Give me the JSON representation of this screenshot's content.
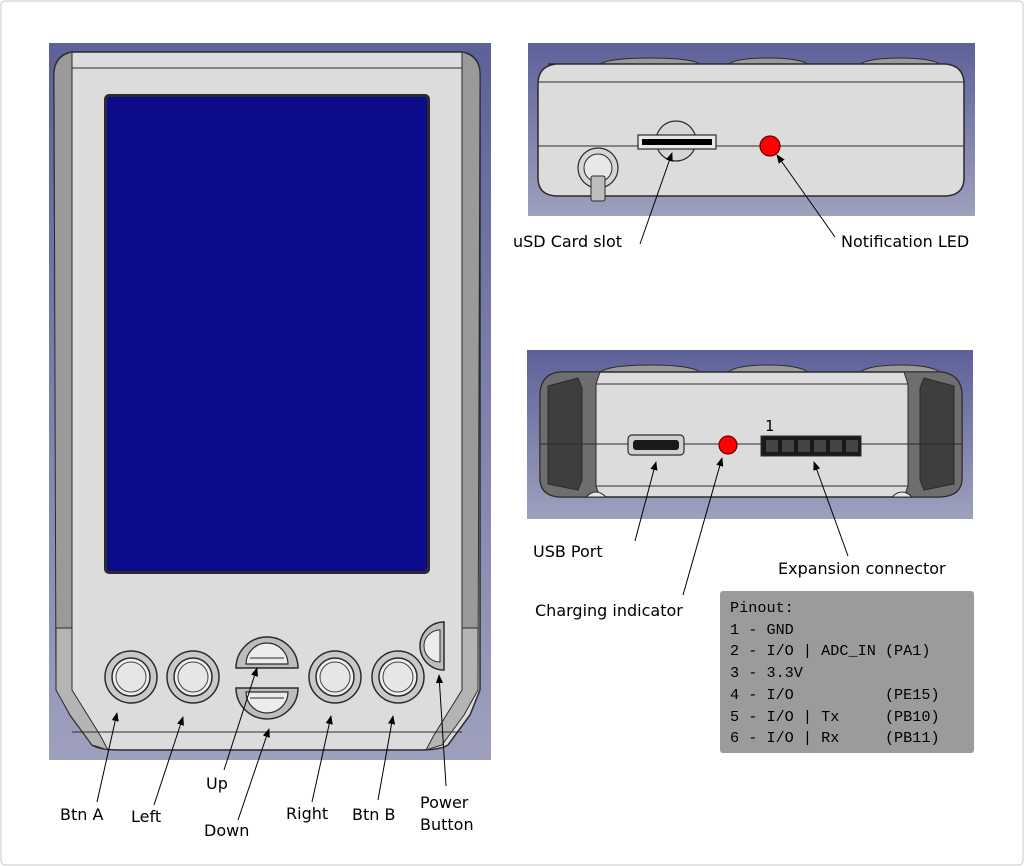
{
  "labels": {
    "btn_a": "Btn A",
    "left": "Left",
    "up": "Up",
    "down": "Down",
    "right": "Right",
    "btn_b": "Btn B",
    "power_line1": "Power",
    "power_line2": "Button",
    "usd_slot": "uSD Card slot",
    "notification_led": "Notification LED",
    "usb_port": "USB Port",
    "charging_indicator": "Charging indicator",
    "expansion_connector": "Expansion connector",
    "pin_one_marker": "1"
  },
  "pinout": {
    "title": "Pinout:",
    "lines": [
      "1 - GND",
      "2 - I/O | ADC_IN (PA1)",
      "3 - 3.3V",
      "4 - I/O          (PE15)",
      "5 - I/O | Tx     (PB10)",
      "6 - I/O | Rx     (PB11)"
    ]
  },
  "colors": {
    "viewport_background": "#6f74a3",
    "screen": "#0b0b8b",
    "led": "#ff0000",
    "device_body": "#dedede",
    "pinout_box": "#9b9b9b"
  }
}
